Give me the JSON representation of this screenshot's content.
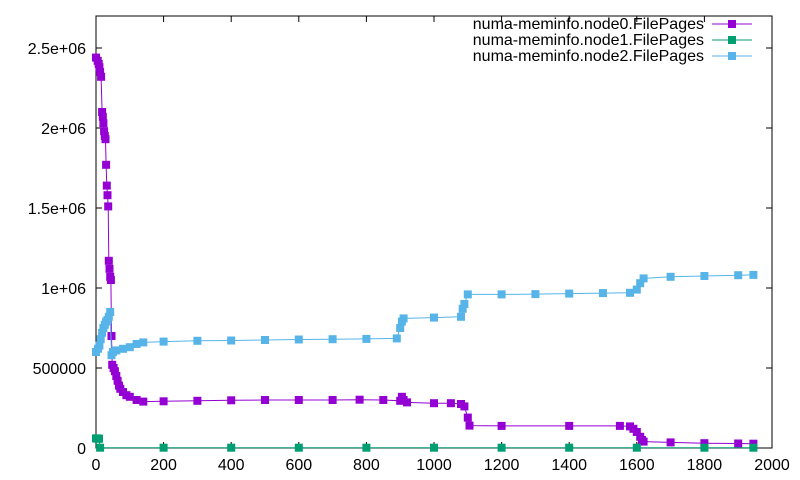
{
  "chart_data": {
    "type": "line",
    "title": "",
    "xlabel": "",
    "ylabel": "",
    "xlim": [
      0,
      2000
    ],
    "ylim": [
      0,
      2700000
    ],
    "x_ticks": [
      {
        "value": 0,
        "label": "0"
      },
      {
        "value": 200,
        "label": "200"
      },
      {
        "value": 400,
        "label": "400"
      },
      {
        "value": 600,
        "label": "600"
      },
      {
        "value": 800,
        "label": "800"
      },
      {
        "value": 1000,
        "label": "1000"
      },
      {
        "value": 1200,
        "label": "1200"
      },
      {
        "value": 1400,
        "label": "1400"
      },
      {
        "value": 1600,
        "label": "1600"
      },
      {
        "value": 1800,
        "label": "1800"
      },
      {
        "value": 2000,
        "label": "2000"
      }
    ],
    "y_ticks": [
      {
        "value": 0,
        "label": "0"
      },
      {
        "value": 500000,
        "label": "500000"
      },
      {
        "value": 1000000,
        "label": "1e+06"
      },
      {
        "value": 1500000,
        "label": "1.5e+06"
      },
      {
        "value": 2000000,
        "label": "2e+06"
      },
      {
        "value": 2500000,
        "label": "2.5e+06"
      }
    ],
    "grid": false,
    "legend_position": "top-right",
    "series": [
      {
        "name": "numa-meminfo.node0.FilePages",
        "color": "#9400d3",
        "marker": "square",
        "points": [
          [
            0,
            2440000
          ],
          [
            5,
            2420000
          ],
          [
            8,
            2400000
          ],
          [
            10,
            2380000
          ],
          [
            12,
            2350000
          ],
          [
            15,
            2320000
          ],
          [
            18,
            2100000
          ],
          [
            20,
            2070000
          ],
          [
            22,
            2030000
          ],
          [
            24,
            1980000
          ],
          [
            26,
            1950000
          ],
          [
            28,
            1930000
          ],
          [
            30,
            1770000
          ],
          [
            32,
            1640000
          ],
          [
            34,
            1580000
          ],
          [
            36,
            1510000
          ],
          [
            38,
            1170000
          ],
          [
            40,
            1120000
          ],
          [
            42,
            1070000
          ],
          [
            44,
            1050000
          ],
          [
            46,
            700000
          ],
          [
            48,
            520000
          ],
          [
            52,
            500000
          ],
          [
            56,
            480000
          ],
          [
            60,
            450000
          ],
          [
            64,
            420000
          ],
          [
            68,
            390000
          ],
          [
            72,
            370000
          ],
          [
            80,
            350000
          ],
          [
            90,
            330000
          ],
          [
            100,
            320000
          ],
          [
            120,
            300000
          ],
          [
            140,
            290000
          ],
          [
            200,
            292000
          ],
          [
            300,
            295000
          ],
          [
            400,
            298000
          ],
          [
            500,
            300000
          ],
          [
            600,
            300000
          ],
          [
            700,
            300000
          ],
          [
            780,
            302000
          ],
          [
            850,
            300000
          ],
          [
            900,
            295000
          ],
          [
            905,
            320000
          ],
          [
            910,
            300000
          ],
          [
            920,
            285000
          ],
          [
            1000,
            280000
          ],
          [
            1050,
            280000
          ],
          [
            1080,
            275000
          ],
          [
            1090,
            260000
          ],
          [
            1100,
            190000
          ],
          [
            1105,
            140000
          ],
          [
            1200,
            138000
          ],
          [
            1400,
            138000
          ],
          [
            1550,
            138000
          ],
          [
            1580,
            135000
          ],
          [
            1590,
            120000
          ],
          [
            1600,
            100000
          ],
          [
            1610,
            70000
          ],
          [
            1615,
            50000
          ],
          [
            1620,
            40000
          ],
          [
            1700,
            35000
          ],
          [
            1800,
            30000
          ],
          [
            1900,
            28000
          ],
          [
            1945,
            27000
          ]
        ]
      },
      {
        "name": "numa-meminfo.node1.FilePages",
        "color": "#009e73",
        "marker": "square",
        "points": [
          [
            0,
            60000
          ],
          [
            3,
            60000
          ],
          [
            6,
            58000
          ],
          [
            9,
            58000
          ],
          [
            12,
            2000
          ],
          [
            200,
            2000
          ],
          [
            400,
            2000
          ],
          [
            600,
            2000
          ],
          [
            800,
            2000
          ],
          [
            1000,
            2000
          ],
          [
            1200,
            2000
          ],
          [
            1400,
            2000
          ],
          [
            1600,
            2000
          ],
          [
            1800,
            2000
          ],
          [
            1945,
            2000
          ]
        ]
      },
      {
        "name": "numa-meminfo.node2.FilePages",
        "color": "#56b4e9",
        "marker": "square",
        "points": [
          [
            0,
            600000
          ],
          [
            6,
            620000
          ],
          [
            10,
            640000
          ],
          [
            14,
            680000
          ],
          [
            18,
            720000
          ],
          [
            22,
            750000
          ],
          [
            26,
            770000
          ],
          [
            30,
            790000
          ],
          [
            34,
            800000
          ],
          [
            38,
            820000
          ],
          [
            42,
            850000
          ],
          [
            46,
            580000
          ],
          [
            50,
            600000
          ],
          [
            60,
            610000
          ],
          [
            80,
            620000
          ],
          [
            100,
            630000
          ],
          [
            120,
            650000
          ],
          [
            140,
            660000
          ],
          [
            200,
            665000
          ],
          [
            300,
            670000
          ],
          [
            400,
            672000
          ],
          [
            500,
            675000
          ],
          [
            600,
            678000
          ],
          [
            700,
            680000
          ],
          [
            800,
            682000
          ],
          [
            890,
            685000
          ],
          [
            900,
            750000
          ],
          [
            905,
            790000
          ],
          [
            910,
            810000
          ],
          [
            1000,
            815000
          ],
          [
            1080,
            820000
          ],
          [
            1085,
            870000
          ],
          [
            1090,
            900000
          ],
          [
            1100,
            960000
          ],
          [
            1200,
            960000
          ],
          [
            1300,
            962000
          ],
          [
            1400,
            965000
          ],
          [
            1500,
            968000
          ],
          [
            1580,
            970000
          ],
          [
            1600,
            990000
          ],
          [
            1610,
            1030000
          ],
          [
            1620,
            1060000
          ],
          [
            1700,
            1070000
          ],
          [
            1800,
            1075000
          ],
          [
            1900,
            1080000
          ],
          [
            1945,
            1082000
          ]
        ]
      }
    ]
  }
}
